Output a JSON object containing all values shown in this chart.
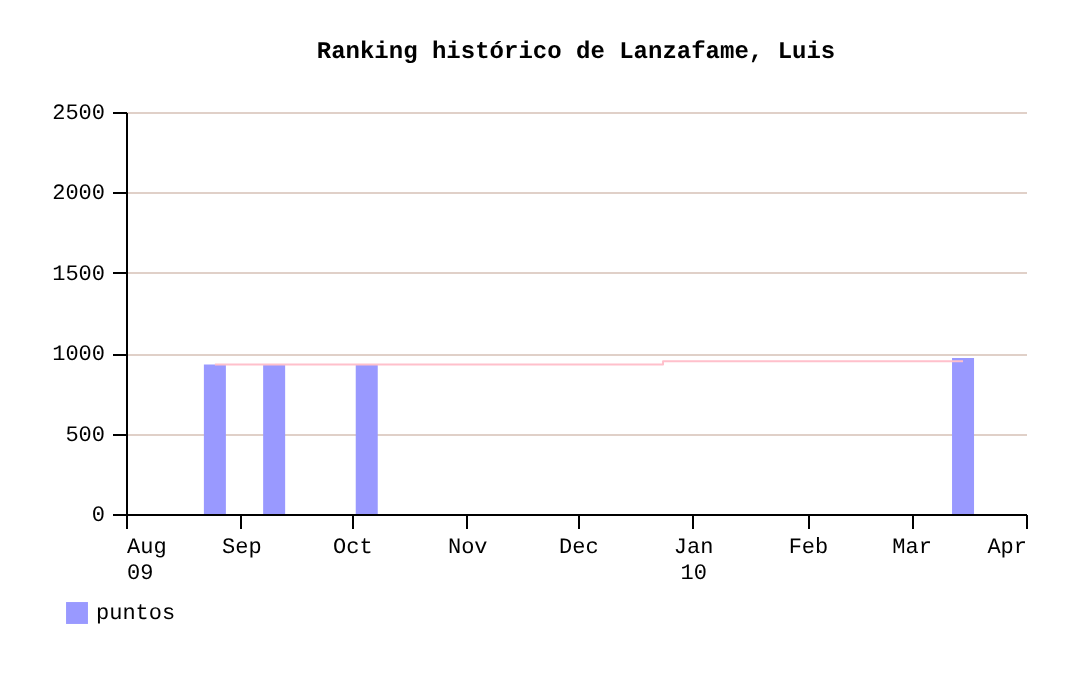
{
  "chart_data": {
    "type": "bar",
    "title": "Ranking histórico de Lanzafame, Luis",
    "xlim": [
      "2009-08-01",
      "2010-04-01"
    ],
    "xticks": [
      {
        "value": "2009-08-01",
        "label": "Aug 09"
      },
      {
        "value": "2009-09-01",
        "label": "Sep"
      },
      {
        "value": "2009-10-01",
        "label": "Oct"
      },
      {
        "value": "2009-11-01",
        "label": "Nov"
      },
      {
        "value": "2009-12-01",
        "label": "Dec"
      },
      {
        "value": "2010-01-01",
        "label": "Jan 10"
      },
      {
        "value": "2010-02-01",
        "label": "Feb"
      },
      {
        "value": "2010-03-01",
        "label": "Mar"
      },
      {
        "value": "2010-04-01",
        "label": "Apr"
      }
    ],
    "ylim": [
      0,
      2500
    ],
    "yticks": [
      0,
      500,
      1000,
      1500,
      2000,
      2500
    ],
    "series": [
      {
        "name": "puntos",
        "color": "#9999ff",
        "x": [
          "2009-08-25",
          "2009-09-10",
          "2009-10-05",
          "2010-03-15"
        ],
        "values": [
          930,
          930,
          930,
          970
        ]
      },
      {
        "type": "step",
        "color": "#ffc0cb",
        "x": [
          "2009-08-25",
          "2009-12-24",
          "2010-03-15"
        ],
        "values": [
          930,
          950,
          950
        ]
      }
    ],
    "grid": "y",
    "legend": "bottom left"
  }
}
